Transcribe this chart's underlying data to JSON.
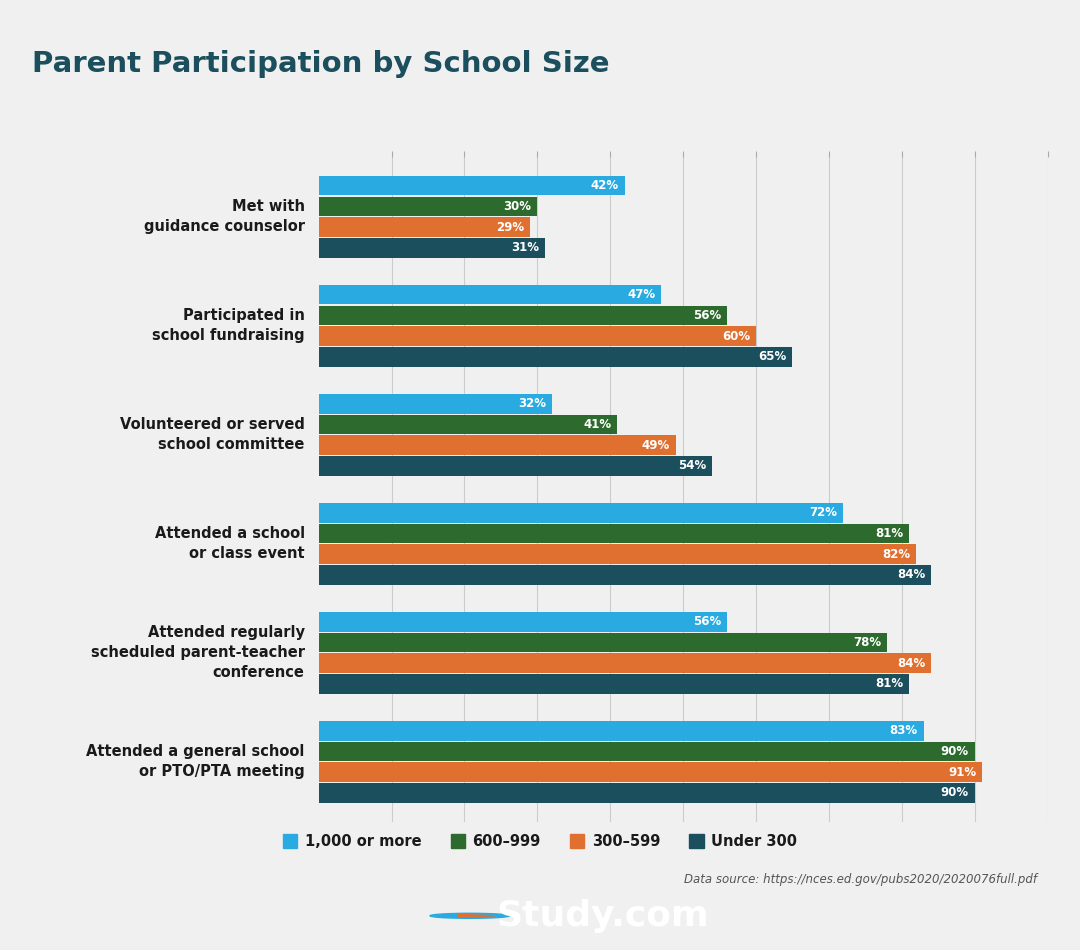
{
  "title": "Parent Participation by School Size",
  "title_color": "#1b4f5e",
  "title_fontsize": 21,
  "accent_line_color": "#8ab82e",
  "background_color": "#f0f0f0",
  "plot_background": "#f0f0f0",
  "footer_color": "#2d5f6e",
  "categories": [
    "Met with\nguidance counselor",
    "Participated in\nschool fundraising",
    "Volunteered or served\nschool committee",
    "Attended a school\nor class event",
    "Attended regularly\nscheduled parent-teacher\nconference",
    "Attended a general school\nor PTO/PTA meeting"
  ],
  "series": [
    {
      "label": "1,000 or more",
      "color": "#29abe2",
      "values": [
        42,
        47,
        32,
        72,
        56,
        83
      ]
    },
    {
      "label": "600–999",
      "color": "#2d6a2d",
      "values": [
        30,
        56,
        41,
        81,
        78,
        90
      ]
    },
    {
      "label": "300–599",
      "color": "#e07030",
      "values": [
        29,
        60,
        49,
        82,
        84,
        91
      ]
    },
    {
      "label": "Under 300",
      "color": "#1b4f5e",
      "values": [
        31,
        65,
        54,
        84,
        81,
        90
      ]
    }
  ],
  "xlim": [
    0,
    100
  ],
  "bar_height": 0.19,
  "data_source": "Data source: https://nces.ed.gov/pubs2020/2020076full.pdf"
}
